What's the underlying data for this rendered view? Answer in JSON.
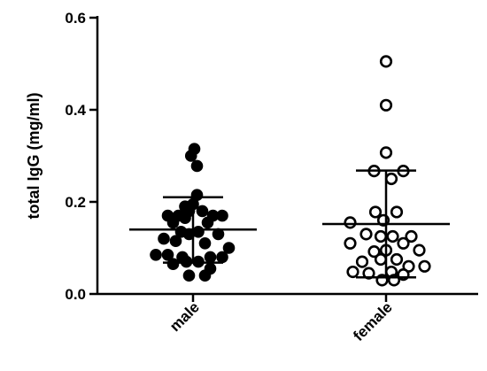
{
  "chart_data": {
    "type": "scatter",
    "subtype": "dot-plot-with-mean-and-sd",
    "title": "",
    "xlabel": "",
    "ylabel": "total IgG (mg/ml)",
    "ylim": [
      0,
      0.6
    ],
    "yticks": [
      0.0,
      0.2,
      0.4,
      0.6
    ],
    "ytick_labels": [
      "0.0",
      "0.2",
      "0.4",
      "0.6"
    ],
    "categories": [
      "male",
      "female"
    ],
    "grid": false,
    "legend": "none",
    "series": [
      {
        "name": "male",
        "marker": "filled-circle",
        "color": "#000000",
        "mean": 0.14,
        "sd_upper": 0.21,
        "sd_lower": 0.068,
        "points": [
          {
            "offset": 0.01,
            "y": 0.315
          },
          {
            "offset": -0.015,
            "y": 0.3
          },
          {
            "offset": 0.03,
            "y": 0.278
          },
          {
            "offset": 0.03,
            "y": 0.215
          },
          {
            "offset": 0.0,
            "y": 0.195
          },
          {
            "offset": -0.06,
            "y": 0.19
          },
          {
            "offset": -0.03,
            "y": 0.18
          },
          {
            "offset": 0.07,
            "y": 0.18
          },
          {
            "offset": -0.19,
            "y": 0.17
          },
          {
            "offset": -0.11,
            "y": 0.17
          },
          {
            "offset": -0.06,
            "y": 0.165
          },
          {
            "offset": 0.15,
            "y": 0.17
          },
          {
            "offset": 0.22,
            "y": 0.17
          },
          {
            "offset": -0.15,
            "y": 0.155
          },
          {
            "offset": 0.11,
            "y": 0.155
          },
          {
            "offset": -0.09,
            "y": 0.135
          },
          {
            "offset": 0.04,
            "y": 0.135
          },
          {
            "offset": -0.03,
            "y": 0.13
          },
          {
            "offset": 0.19,
            "y": 0.13
          },
          {
            "offset": -0.22,
            "y": 0.12
          },
          {
            "offset": -0.13,
            "y": 0.115
          },
          {
            "offset": 0.09,
            "y": 0.11
          },
          {
            "offset": 0.27,
            "y": 0.1
          },
          {
            "offset": -0.28,
            "y": 0.085
          },
          {
            "offset": -0.19,
            "y": 0.085
          },
          {
            "offset": -0.08,
            "y": 0.08
          },
          {
            "offset": 0.13,
            "y": 0.08
          },
          {
            "offset": 0.22,
            "y": 0.08
          },
          {
            "offset": -0.15,
            "y": 0.065
          },
          {
            "offset": -0.05,
            "y": 0.07
          },
          {
            "offset": 0.04,
            "y": 0.07
          },
          {
            "offset": 0.13,
            "y": 0.055
          },
          {
            "offset": -0.03,
            "y": 0.04
          },
          {
            "offset": 0.09,
            "y": 0.04
          }
        ]
      },
      {
        "name": "female",
        "marker": "open-circle",
        "color": "#000000",
        "mean": 0.152,
        "sd_upper": 0.268,
        "sd_lower": 0.036,
        "points": [
          {
            "offset": 0.0,
            "y": 0.505
          },
          {
            "offset": 0.0,
            "y": 0.41
          },
          {
            "offset": 0.0,
            "y": 0.307
          },
          {
            "offset": -0.09,
            "y": 0.267
          },
          {
            "offset": 0.13,
            "y": 0.267
          },
          {
            "offset": 0.04,
            "y": 0.25
          },
          {
            "offset": -0.08,
            "y": 0.178
          },
          {
            "offset": 0.08,
            "y": 0.178
          },
          {
            "offset": -0.02,
            "y": 0.16
          },
          {
            "offset": -0.27,
            "y": 0.155
          },
          {
            "offset": -0.15,
            "y": 0.13
          },
          {
            "offset": -0.04,
            "y": 0.125
          },
          {
            "offset": 0.05,
            "y": 0.125
          },
          {
            "offset": 0.19,
            "y": 0.125
          },
          {
            "offset": -0.27,
            "y": 0.11
          },
          {
            "offset": 0.13,
            "y": 0.11
          },
          {
            "offset": 0.25,
            "y": 0.095
          },
          {
            "offset": -0.09,
            "y": 0.092
          },
          {
            "offset": 0.0,
            "y": 0.095
          },
          {
            "offset": -0.04,
            "y": 0.075
          },
          {
            "offset": 0.08,
            "y": 0.075
          },
          {
            "offset": -0.18,
            "y": 0.07
          },
          {
            "offset": 0.17,
            "y": 0.06
          },
          {
            "offset": 0.29,
            "y": 0.06
          },
          {
            "offset": -0.25,
            "y": 0.048
          },
          {
            "offset": -0.13,
            "y": 0.045
          },
          {
            "offset": 0.04,
            "y": 0.048
          },
          {
            "offset": 0.13,
            "y": 0.042
          },
          {
            "offset": -0.03,
            "y": 0.03
          },
          {
            "offset": 0.06,
            "y": 0.03
          }
        ]
      }
    ]
  }
}
